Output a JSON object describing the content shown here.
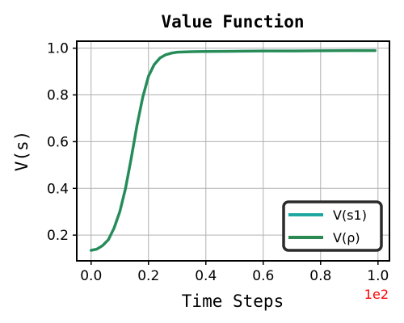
{
  "chart_data": {
    "type": "line",
    "title": "Value Function",
    "xlabel": "Time Steps",
    "ylabel": "V(s)",
    "x_offset_label": "1e2",
    "xlim": [
      -0.05,
      1.04
    ],
    "ylim": [
      0.09,
      1.03
    ],
    "xticks": [
      0.0,
      0.2,
      0.4,
      0.6,
      0.8,
      1.0
    ],
    "xtick_labels": [
      "0.0",
      "0.2",
      "0.4",
      "0.6",
      "0.8",
      "1.0"
    ],
    "yticks": [
      0.2,
      0.4,
      0.6,
      0.8,
      1.0
    ],
    "ytick_labels": [
      "0.2",
      "0.4",
      "0.6",
      "0.8",
      "1.0"
    ],
    "grid": true,
    "legend_position": "bottom-right",
    "x": [
      0.0,
      0.02,
      0.04,
      0.06,
      0.08,
      0.1,
      0.12,
      0.14,
      0.16,
      0.18,
      0.2,
      0.22,
      0.24,
      0.26,
      0.28,
      0.3,
      0.35,
      0.4,
      0.5,
      0.6,
      0.7,
      0.8,
      0.9,
      0.99
    ],
    "series": [
      {
        "name": "V(s1)",
        "color": "#20a8a0",
        "values": [
          0.135,
          0.14,
          0.155,
          0.18,
          0.23,
          0.3,
          0.4,
          0.53,
          0.67,
          0.79,
          0.88,
          0.93,
          0.958,
          0.972,
          0.979,
          0.983,
          0.985,
          0.986,
          0.987,
          0.988,
          0.988,
          0.989,
          0.99,
          0.99
        ]
      },
      {
        "name": "V(ρ)",
        "color": "#2a8a52",
        "values": [
          0.135,
          0.14,
          0.155,
          0.18,
          0.23,
          0.3,
          0.4,
          0.53,
          0.67,
          0.79,
          0.88,
          0.93,
          0.958,
          0.972,
          0.979,
          0.983,
          0.985,
          0.986,
          0.987,
          0.988,
          0.988,
          0.989,
          0.99,
          0.99
        ]
      }
    ],
    "colors": {
      "offset": "#ff0000",
      "legend_border": "#2b2b2b"
    }
  }
}
